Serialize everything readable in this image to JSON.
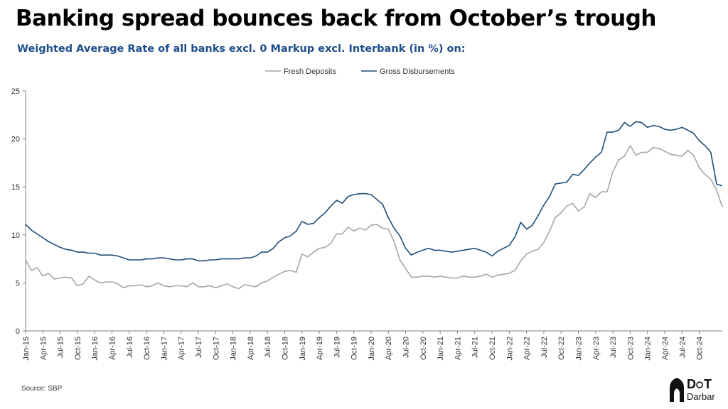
{
  "title": "Banking spread bounces back from October’s trough",
  "subtitle": "Weighted Average Rate of all banks excl. 0 Markup excl. Interbank (in %) on:",
  "source": "Source: SBP",
  "logo_text": "DoT Darbar",
  "colors": {
    "series1": "#a6a6a6",
    "series2": "#1f4e79",
    "title": "#000000",
    "subtitle": "#1f4e8c"
  },
  "chart_data": {
    "type": "line",
    "title": "Banking spread bounces back from October’s trough",
    "subtitle": "Weighted Average Rate of all banks excl. 0 Markup excl. Interbank (in %) on:",
    "xlabel": "",
    "ylabel": "",
    "ylim": [
      0,
      25
    ],
    "yticks": [
      0,
      5,
      10,
      15,
      20,
      25
    ],
    "legend_position": "top-center",
    "grid": false,
    "x_tick_labels": [
      "Jan-15",
      "Apr-15",
      "Jul-15",
      "Oct-15",
      "Jan-16",
      "Apr-16",
      "Jul-16",
      "Oct-16",
      "Jan-17",
      "Apr-17",
      "Jul-17",
      "Oct-17",
      "Jan-18",
      "Apr-18",
      "Jul-18",
      "Oct-18",
      "Jan-19",
      "Apr-19",
      "Jul-19",
      "Oct-19",
      "Jan-20",
      "Apr-20",
      "Jul-20",
      "Oct-20",
      "Jan-21",
      "Apr-21",
      "Jul-21",
      "Oct-21",
      "Jan-22",
      "Apr-22",
      "Jul-22",
      "Oct-22",
      "Jan-23",
      "Apr-23",
      "Jul-23",
      "Oct-23",
      "Jan-24",
      "Apr-24",
      "Jul-24",
      "Oct-24"
    ],
    "x_start": "2015-01",
    "x_end": "2024-12",
    "series": [
      {
        "name": "Fresh Deposits",
        "values": [
          7.4,
          6.3,
          6.6,
          5.7,
          6.0,
          5.4,
          5.5,
          5.6,
          5.5,
          4.7,
          4.9,
          5.7,
          5.3,
          5.0,
          5.1,
          5.1,
          4.9,
          4.5,
          4.7,
          4.7,
          4.8,
          4.6,
          4.7,
          5.0,
          4.7,
          4.6,
          4.7,
          4.7,
          4.6,
          5.0,
          4.6,
          4.6,
          4.7,
          4.5,
          4.7,
          4.9,
          4.6,
          4.4,
          4.8,
          4.7,
          4.6,
          5.0,
          5.2,
          5.6,
          5.9,
          6.2,
          6.3,
          6.1,
          8.0,
          7.7,
          8.2,
          8.6,
          8.7,
          9.1,
          10.1,
          10.1,
          10.8,
          10.4,
          10.7,
          10.5,
          11.0,
          11.1,
          10.7,
          10.6,
          9.3,
          7.4,
          6.5,
          5.6,
          5.6,
          5.7,
          5.7,
          5.6,
          5.7,
          5.6,
          5.5,
          5.5,
          5.7,
          5.6,
          5.6,
          5.7,
          5.9,
          5.6,
          5.8,
          5.9,
          6.0,
          6.3,
          7.3,
          8.0,
          8.3,
          8.5,
          9.2,
          10.4,
          11.8,
          12.3,
          13.0,
          13.3,
          12.5,
          12.9,
          14.3,
          13.9,
          14.5,
          14.5,
          16.6,
          17.8,
          18.2,
          19.3,
          18.3,
          18.6,
          18.6,
          19.1,
          19.0,
          18.7,
          18.4,
          18.3,
          18.2,
          18.8,
          18.3,
          17.0,
          16.3,
          15.8,
          14.7,
          12.9
        ]
      },
      {
        "name": "Gross Disbursements",
        "values": [
          11.1,
          10.5,
          10.1,
          9.7,
          9.3,
          9.0,
          8.7,
          8.5,
          8.4,
          8.2,
          8.2,
          8.1,
          8.1,
          7.9,
          7.9,
          7.9,
          7.8,
          7.6,
          7.4,
          7.4,
          7.4,
          7.5,
          7.5,
          7.6,
          7.6,
          7.5,
          7.4,
          7.4,
          7.5,
          7.5,
          7.3,
          7.3,
          7.4,
          7.4,
          7.5,
          7.5,
          7.5,
          7.5,
          7.6,
          7.6,
          7.8,
          8.2,
          8.2,
          8.6,
          9.3,
          9.7,
          9.9,
          10.4,
          11.4,
          11.1,
          11.2,
          11.8,
          12.3,
          13.0,
          13.6,
          13.3,
          14.0,
          14.2,
          14.3,
          14.3,
          14.2,
          13.7,
          13.2,
          11.8,
          10.7,
          9.9,
          8.6,
          7.9,
          8.2,
          8.4,
          8.6,
          8.4,
          8.4,
          8.3,
          8.2,
          8.3,
          8.4,
          8.5,
          8.6,
          8.4,
          8.2,
          7.8,
          8.3,
          8.6,
          8.9,
          9.8,
          11.3,
          10.6,
          11.0,
          12.0,
          13.1,
          14.0,
          15.3,
          15.4,
          15.5,
          16.3,
          16.2,
          16.8,
          17.5,
          18.1,
          18.6,
          20.7,
          20.7,
          20.9,
          21.7,
          21.3,
          21.8,
          21.7,
          21.2,
          21.4,
          21.3,
          21.0,
          20.9,
          21.0,
          21.2,
          20.9,
          20.6,
          19.8,
          19.3,
          18.6,
          15.3,
          15.1
        ]
      }
    ]
  }
}
